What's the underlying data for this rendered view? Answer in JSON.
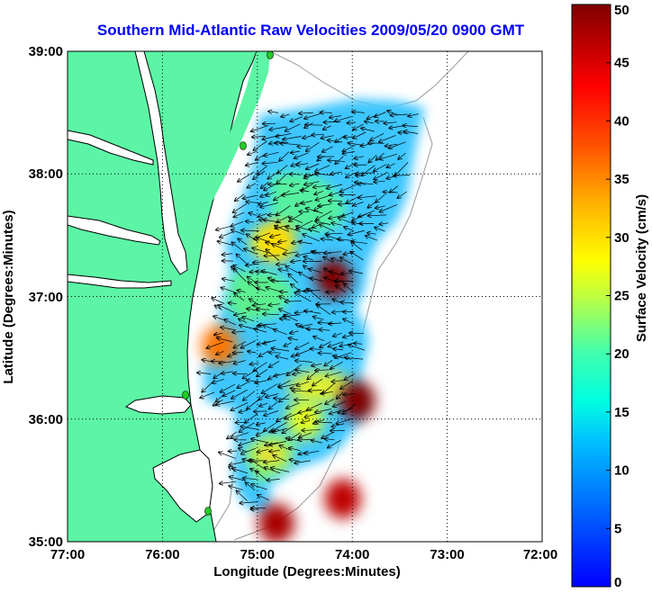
{
  "chart_data": {
    "type": "heatmap",
    "title": "Southern Mid-Atlantic Raw Velocities 2009/05/20 0900 GMT",
    "xlabel": "Longitude (Degrees:Minutes)",
    "ylabel": "Latitude (Degrees:Minutes)",
    "xlim": [
      -77,
      -72
    ],
    "ylim": [
      35,
      39
    ],
    "x_ticks": [
      {
        "value": -77,
        "label": "77:00"
      },
      {
        "value": -76,
        "label": "76:00"
      },
      {
        "value": -75,
        "label": "75:00"
      },
      {
        "value": -74,
        "label": "74:00"
      },
      {
        "value": -73,
        "label": "73:00"
      },
      {
        "value": -72,
        "label": "72:00"
      }
    ],
    "y_ticks": [
      {
        "value": 35,
        "label": "35:00"
      },
      {
        "value": 36,
        "label": "36:00"
      },
      {
        "value": 37,
        "label": "37:00"
      },
      {
        "value": 38,
        "label": "38:00"
      },
      {
        "value": 39,
        "label": "39:00"
      }
    ],
    "grid": true,
    "colorbar": {
      "label": "Surface Velocity (cm/s)",
      "range": [
        0,
        50
      ],
      "ticks": [
        "0",
        "5",
        "10",
        "15",
        "20",
        "25",
        "30",
        "35",
        "40",
        "45",
        "50"
      ],
      "colormap": "jet",
      "placement": "right"
    },
    "hotspots": [
      {
        "lon": -74.2,
        "lat": 37.15,
        "speed": 50
      },
      {
        "lon": -73.95,
        "lat": 36.15,
        "speed": 50
      },
      {
        "lon": -74.8,
        "lat": 35.15,
        "speed": 48
      },
      {
        "lon": -74.1,
        "lat": 35.35,
        "speed": 47
      },
      {
        "lon": -75.4,
        "lat": 36.6,
        "speed": 38
      },
      {
        "lon": -74.8,
        "lat": 37.45,
        "speed": 33
      },
      {
        "lon": -74.5,
        "lat": 36.0,
        "speed": 30
      }
    ],
    "colors": {
      "land": "#5cf5a5",
      "water": "#ffffff",
      "coastline": "#000000",
      "bathymetry": "#9a9a9a",
      "grid": "#000000",
      "station_marker": "#22cc22"
    }
  }
}
